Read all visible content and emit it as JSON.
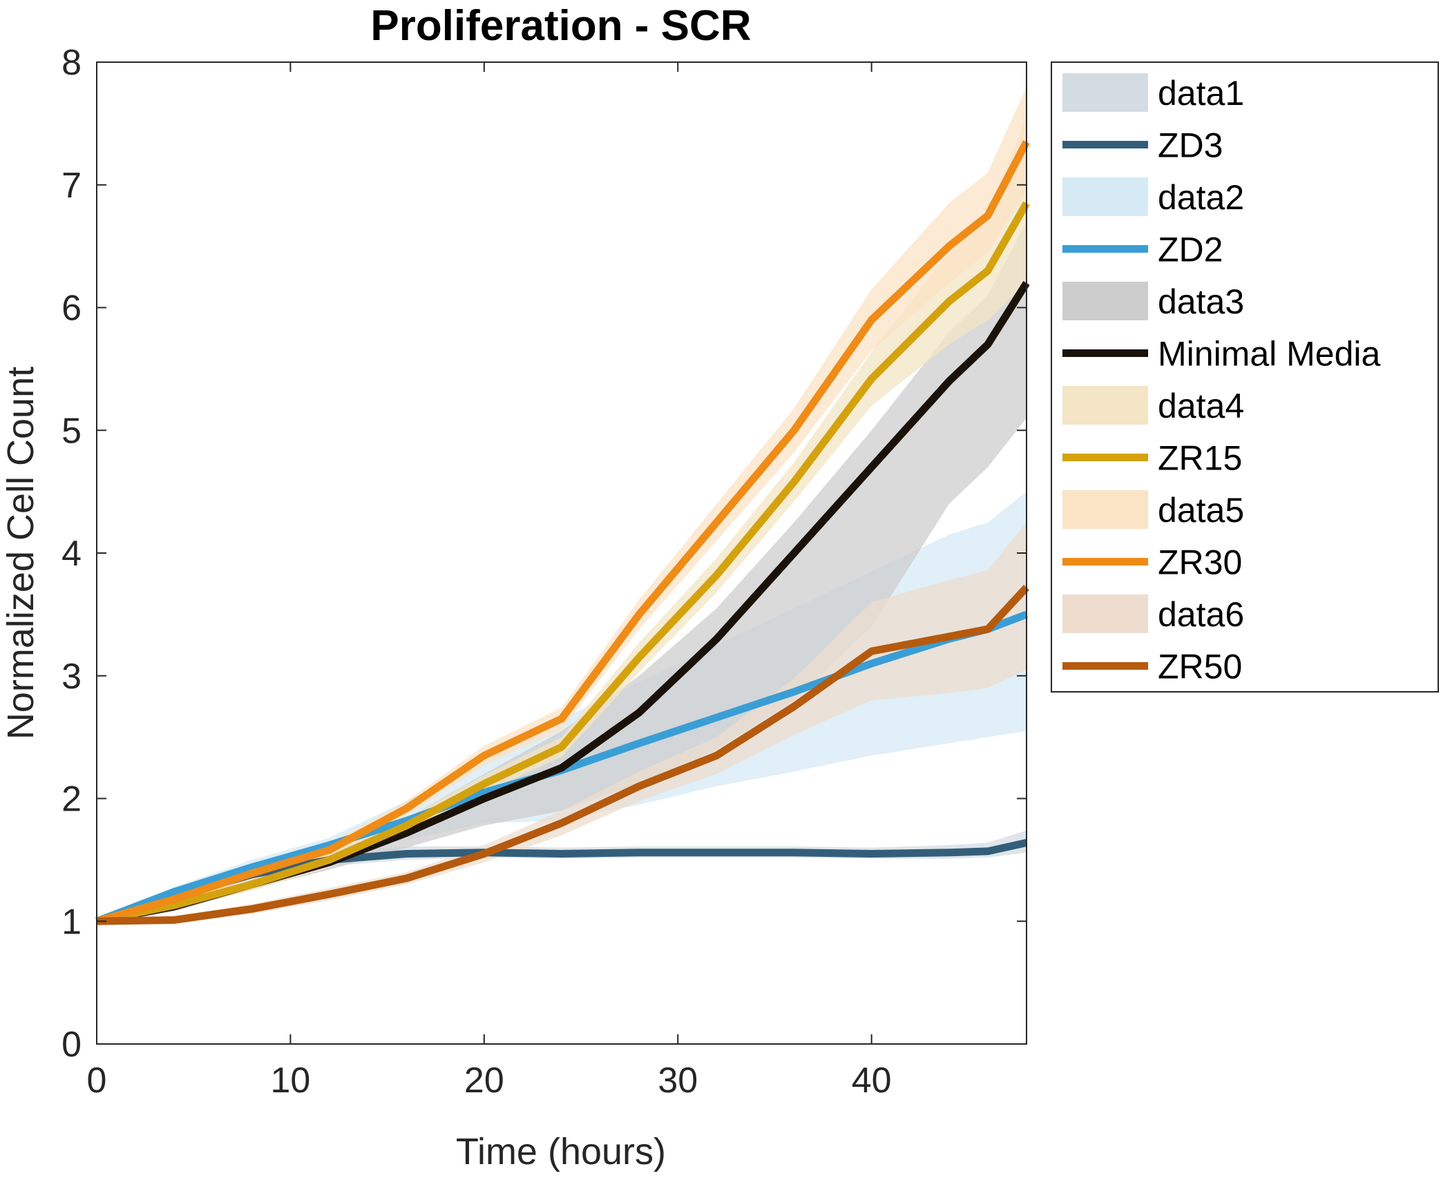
{
  "chart_data": {
    "type": "line",
    "title": "Proliferation - SCR",
    "xlabel": "Time (hours)",
    "ylabel": "Normalized Cell Count",
    "xlim": [
      0,
      48
    ],
    "ylim": [
      0,
      8
    ],
    "xticks": [
      0,
      10,
      20,
      30,
      40
    ],
    "yticks": [
      0,
      1,
      2,
      3,
      4,
      5,
      6,
      7,
      8
    ],
    "grid": false,
    "legend_position": "outside-right",
    "x": [
      0,
      4,
      8,
      12,
      16,
      20,
      24,
      28,
      32,
      36,
      40,
      44,
      46,
      48
    ],
    "series": [
      {
        "name": "ZD3",
        "band_name": "data1",
        "color": "#335E7A",
        "band_color": "#D4DCE3",
        "values": [
          1.0,
          1.2,
          1.38,
          1.5,
          1.55,
          1.56,
          1.55,
          1.56,
          1.56,
          1.56,
          1.55,
          1.56,
          1.57,
          1.64
        ],
        "lower": [
          0.97,
          1.16,
          1.33,
          1.45,
          1.5,
          1.52,
          1.51,
          1.52,
          1.52,
          1.52,
          1.51,
          1.51,
          1.52,
          1.56
        ],
        "upper": [
          1.03,
          1.24,
          1.43,
          1.56,
          1.61,
          1.61,
          1.6,
          1.61,
          1.61,
          1.61,
          1.6,
          1.62,
          1.64,
          1.74
        ]
      },
      {
        "name": "ZD2",
        "band_name": "data2",
        "color": "#3A9ED6",
        "band_color": "#D6EAF6",
        "values": [
          1.0,
          1.24,
          1.44,
          1.62,
          1.82,
          2.05,
          2.23,
          2.45,
          2.66,
          2.87,
          3.1,
          3.3,
          3.38,
          3.5
        ],
        "lower": [
          0.97,
          1.2,
          1.38,
          1.56,
          1.66,
          1.8,
          1.82,
          1.95,
          2.1,
          2.22,
          2.35,
          2.45,
          2.5,
          2.55
        ],
        "upper": [
          1.03,
          1.28,
          1.5,
          1.68,
          1.98,
          2.3,
          2.65,
          2.95,
          3.25,
          3.55,
          3.85,
          4.15,
          4.25,
          4.5
        ]
      },
      {
        "name": "Minimal Media",
        "band_name": "data3",
        "color": "#1A1209",
        "band_color": "#CDCDCD",
        "values": [
          1.0,
          1.12,
          1.3,
          1.48,
          1.72,
          2.0,
          2.25,
          2.7,
          3.3,
          4.0,
          4.7,
          5.4,
          5.7,
          6.2
        ],
        "lower": [
          0.97,
          1.08,
          1.26,
          1.42,
          1.6,
          1.78,
          1.9,
          2.12,
          2.4,
          2.8,
          3.4,
          4.4,
          4.7,
          5.1
        ],
        "upper": [
          1.03,
          1.16,
          1.34,
          1.54,
          1.84,
          2.2,
          2.55,
          3.0,
          3.55,
          4.25,
          5.0,
          5.8,
          6.1,
          6.7
        ]
      },
      {
        "name": "ZR15",
        "band_name": "data4",
        "color": "#D4A20E",
        "band_color": "#F3E5C5",
        "values": [
          1.0,
          1.13,
          1.3,
          1.5,
          1.78,
          2.12,
          2.42,
          3.15,
          3.82,
          4.58,
          5.42,
          6.05,
          6.3,
          6.85
        ],
        "lower": [
          0.97,
          1.09,
          1.25,
          1.44,
          1.72,
          2.05,
          2.34,
          3.03,
          3.68,
          4.42,
          5.2,
          5.7,
          5.9,
          6.2
        ],
        "upper": [
          1.03,
          1.17,
          1.35,
          1.56,
          1.84,
          2.19,
          2.5,
          3.27,
          3.96,
          4.74,
          5.64,
          6.45,
          6.75,
          7.55
        ]
      },
      {
        "name": "ZR30",
        "band_name": "data5",
        "color": "#EF8B17",
        "band_color": "#FBE3C6",
        "values": [
          1.0,
          1.18,
          1.39,
          1.58,
          1.92,
          2.35,
          2.65,
          3.5,
          4.25,
          5.0,
          5.9,
          6.5,
          6.75,
          7.35
        ],
        "lower": [
          0.97,
          1.14,
          1.34,
          1.52,
          1.86,
          2.27,
          2.56,
          3.38,
          4.1,
          4.82,
          5.65,
          6.2,
          6.45,
          6.95
        ],
        "upper": [
          1.03,
          1.22,
          1.44,
          1.64,
          1.98,
          2.43,
          2.74,
          3.62,
          4.4,
          5.18,
          6.15,
          6.85,
          7.1,
          7.8
        ]
      },
      {
        "name": "ZR50",
        "band_name": "data6",
        "color": "#B55A0E",
        "band_color": "#EEDDCF",
        "values": [
          1.0,
          1.01,
          1.1,
          1.22,
          1.35,
          1.55,
          1.8,
          2.1,
          2.35,
          2.75,
          3.2,
          3.32,
          3.38,
          3.72
        ],
        "lower": [
          0.97,
          0.98,
          1.06,
          1.17,
          1.3,
          1.48,
          1.7,
          1.98,
          2.2,
          2.52,
          2.8,
          2.86,
          2.9,
          3.05
        ],
        "upper": [
          1.03,
          1.04,
          1.14,
          1.27,
          1.4,
          1.62,
          1.9,
          2.22,
          2.5,
          2.98,
          3.6,
          3.78,
          3.86,
          4.25
        ]
      }
    ]
  }
}
